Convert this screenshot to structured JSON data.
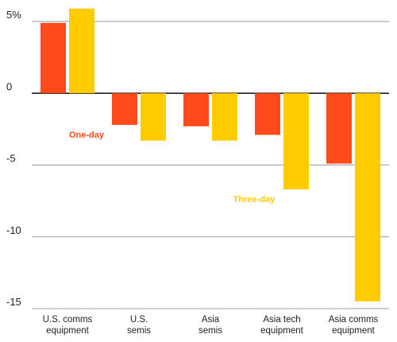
{
  "chart_data": {
    "type": "bar",
    "title": "",
    "xlabel": "",
    "ylabel": "",
    "ylim": [
      -15,
      5
    ],
    "y_ticks": [
      {
        "value": 5,
        "label": "5%"
      },
      {
        "value": 0,
        "label": "0"
      },
      {
        "value": -5,
        "label": "-5"
      },
      {
        "value": -10,
        "label": "-10"
      },
      {
        "value": -15,
        "label": "-15"
      }
    ],
    "grid": true,
    "categories": [
      [
        "U.S. comms",
        "equipment"
      ],
      [
        "U.S.",
        "semis"
      ],
      [
        "Asia",
        "semis"
      ],
      [
        "Asia tech",
        "equipment"
      ],
      [
        "Asia comms",
        "equipment"
      ]
    ],
    "series": [
      {
        "name": "One-day",
        "color": "#FF4A1C",
        "values": [
          4.9,
          -2.2,
          -2.3,
          -2.9,
          -4.9
        ]
      },
      {
        "name": "Three-day",
        "color": "#FFCC00",
        "values": [
          5.9,
          -3.3,
          -3.3,
          -6.7,
          -14.5
        ]
      }
    ]
  }
}
